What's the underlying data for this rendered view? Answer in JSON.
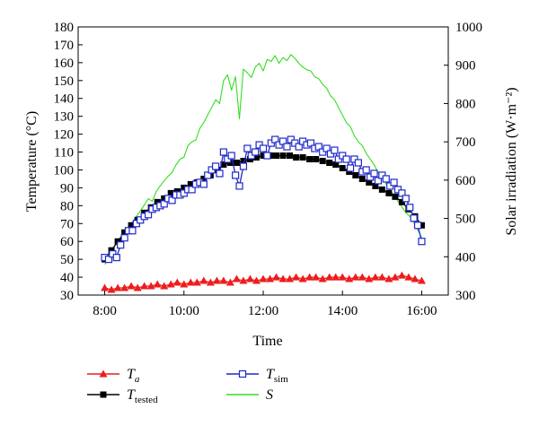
{
  "chart_data": {
    "type": "line",
    "xlabel": "Time",
    "ylabel_left": "Temperature (°C)",
    "ylabel_right": "Solar irradiation (W·m⁻²)",
    "x_ticks": [
      "8:00",
      "10:00",
      "12:00",
      "14:00",
      "16:00"
    ],
    "x_range_hours": [
      7.33,
      16.67
    ],
    "y_left": {
      "min": 30,
      "max": 180,
      "step": 10
    },
    "y_right": {
      "min": 300,
      "max": 1000,
      "step": 100
    },
    "grid": false,
    "legend_position": "bottom",
    "series": [
      {
        "name": "T_a",
        "symbol": "T",
        "subscript": "a",
        "axis": "left",
        "marker": "triangle",
        "color": "#ee1c1c",
        "x": [
          8.0,
          8.17,
          8.33,
          8.5,
          8.67,
          8.83,
          9.0,
          9.17,
          9.33,
          9.5,
          9.67,
          9.83,
          10.0,
          10.17,
          10.33,
          10.5,
          10.67,
          10.83,
          11.0,
          11.17,
          11.33,
          11.5,
          11.67,
          11.83,
          12.0,
          12.17,
          12.33,
          12.5,
          12.67,
          12.83,
          13.0,
          13.17,
          13.33,
          13.5,
          13.67,
          13.83,
          14.0,
          14.17,
          14.33,
          14.5,
          14.67,
          14.83,
          15.0,
          15.17,
          15.33,
          15.5,
          15.67,
          15.83,
          16.0
        ],
        "y": [
          34,
          33,
          34,
          34,
          35,
          34,
          35,
          35,
          36,
          35,
          36,
          37,
          36,
          37,
          37,
          38,
          37,
          38,
          38,
          37,
          39,
          38,
          39,
          38,
          39,
          39,
          40,
          39,
          39,
          40,
          39,
          40,
          40,
          39,
          40,
          40,
          40,
          39,
          40,
          40,
          39,
          40,
          40,
          39,
          40,
          41,
          40,
          39,
          38
        ]
      },
      {
        "name": "T_tested",
        "symbol": "T",
        "subscript": "tested",
        "axis": "left",
        "marker": "filled-square",
        "color": "#000000",
        "x": [
          8.0,
          8.17,
          8.33,
          8.5,
          8.67,
          8.83,
          9.0,
          9.17,
          9.33,
          9.5,
          9.67,
          9.83,
          10.0,
          10.17,
          10.33,
          10.5,
          10.67,
          10.83,
          11.0,
          11.17,
          11.33,
          11.5,
          11.67,
          11.83,
          12.0,
          12.17,
          12.33,
          12.5,
          12.67,
          12.83,
          13.0,
          13.17,
          13.33,
          13.5,
          13.67,
          13.83,
          14.0,
          14.17,
          14.33,
          14.5,
          14.67,
          14.83,
          15.0,
          15.17,
          15.33,
          15.5,
          15.67,
          15.83,
          16.0
        ],
        "y": [
          50,
          55,
          60,
          65,
          69,
          72,
          76,
          79,
          82,
          84,
          87,
          88,
          90,
          92,
          93,
          95,
          97,
          100,
          103,
          104,
          104,
          105,
          106,
          107,
          108,
          108,
          108,
          108,
          108,
          107,
          107,
          106,
          106,
          105,
          104,
          103,
          101,
          99,
          97,
          95,
          93,
          91,
          89,
          87,
          85,
          82,
          78,
          74,
          69
        ]
      },
      {
        "name": "T_sim",
        "symbol": "T",
        "subscript": "sim",
        "axis": "left",
        "marker": "open-square",
        "color": "#1f28c8",
        "x": [
          8.0,
          8.1,
          8.2,
          8.3,
          8.4,
          8.5,
          8.6,
          8.7,
          8.8,
          8.9,
          9.0,
          9.1,
          9.2,
          9.3,
          9.4,
          9.5,
          9.6,
          9.7,
          9.8,
          9.9,
          10.0,
          10.1,
          10.2,
          10.3,
          10.4,
          10.5,
          10.6,
          10.7,
          10.8,
          10.9,
          11.0,
          11.1,
          11.2,
          11.3,
          11.4,
          11.5,
          11.6,
          11.7,
          11.8,
          11.9,
          12.0,
          12.1,
          12.2,
          12.3,
          12.4,
          12.5,
          12.6,
          12.7,
          12.8,
          12.9,
          13.0,
          13.1,
          13.2,
          13.3,
          13.4,
          13.5,
          13.6,
          13.7,
          13.8,
          13.9,
          14.0,
          14.1,
          14.2,
          14.3,
          14.4,
          14.5,
          14.6,
          14.7,
          14.8,
          14.9,
          15.0,
          15.1,
          15.2,
          15.3,
          15.4,
          15.5,
          15.6,
          15.7,
          15.8,
          15.9,
          16.0
        ],
        "y": [
          51,
          50,
          53,
          51,
          58,
          62,
          66,
          66,
          70,
          72,
          74,
          75,
          78,
          79,
          80,
          81,
          84,
          83,
          86,
          86,
          87,
          89,
          89,
          92,
          93,
          92,
          97,
          100,
          102,
          98,
          110,
          106,
          108,
          97,
          91,
          102,
          112,
          108,
          110,
          114,
          112,
          108,
          115,
          117,
          114,
          116,
          113,
          117,
          115,
          113,
          116,
          114,
          115,
          112,
          113,
          110,
          112,
          109,
          111,
          106,
          108,
          106,
          101,
          106,
          104,
          99,
          100,
          96,
          98,
          94,
          97,
          95,
          91,
          93,
          89,
          87,
          84,
          79,
          73,
          69,
          60
        ]
      },
      {
        "name": "S",
        "symbol": "S",
        "subscript": "",
        "axis": "right",
        "marker": "none",
        "color": "#33dd22",
        "x": [
          8.0,
          8.1,
          8.2,
          8.3,
          8.4,
          8.5,
          8.6,
          8.7,
          8.8,
          8.9,
          9.0,
          9.1,
          9.2,
          9.3,
          9.4,
          9.5,
          9.6,
          9.7,
          9.8,
          9.9,
          10.0,
          10.1,
          10.2,
          10.3,
          10.4,
          10.5,
          10.6,
          10.7,
          10.8,
          10.9,
          11.0,
          11.1,
          11.2,
          11.3,
          11.4,
          11.5,
          11.6,
          11.7,
          11.8,
          11.9,
          12.0,
          12.1,
          12.2,
          12.3,
          12.4,
          12.5,
          12.6,
          12.7,
          12.8,
          12.9,
          13.0,
          13.1,
          13.2,
          13.3,
          13.4,
          13.5,
          13.6,
          13.7,
          13.8,
          13.9,
          14.0,
          14.1,
          14.2,
          14.3,
          14.4,
          14.5,
          14.6,
          14.7,
          14.8,
          14.9,
          15.0,
          15.1,
          15.2,
          15.3,
          15.4,
          15.5,
          15.6,
          15.7,
          15.8,
          15.9,
          16.0
        ],
        "y": [
          380,
          395,
          420,
          435,
          450,
          465,
          478,
          490,
          505,
          520,
          535,
          552,
          545,
          570,
          585,
          598,
          610,
          620,
          640,
          655,
          660,
          690,
          700,
          705,
          735,
          750,
          770,
          790,
          810,
          800,
          860,
          875,
          835,
          870,
          760,
          890,
          880,
          868,
          895,
          905,
          885,
          915,
          910,
          925,
          905,
          920,
          912,
          928,
          918,
          905,
          895,
          888,
          885,
          870,
          865,
          850,
          840,
          820,
          810,
          790,
          770,
          750,
          740,
          715,
          700,
          690,
          670,
          655,
          640,
          620,
          610,
          590,
          575,
          560,
          545,
          530,
          515,
          505,
          490,
          470,
          450
        ]
      }
    ]
  }
}
